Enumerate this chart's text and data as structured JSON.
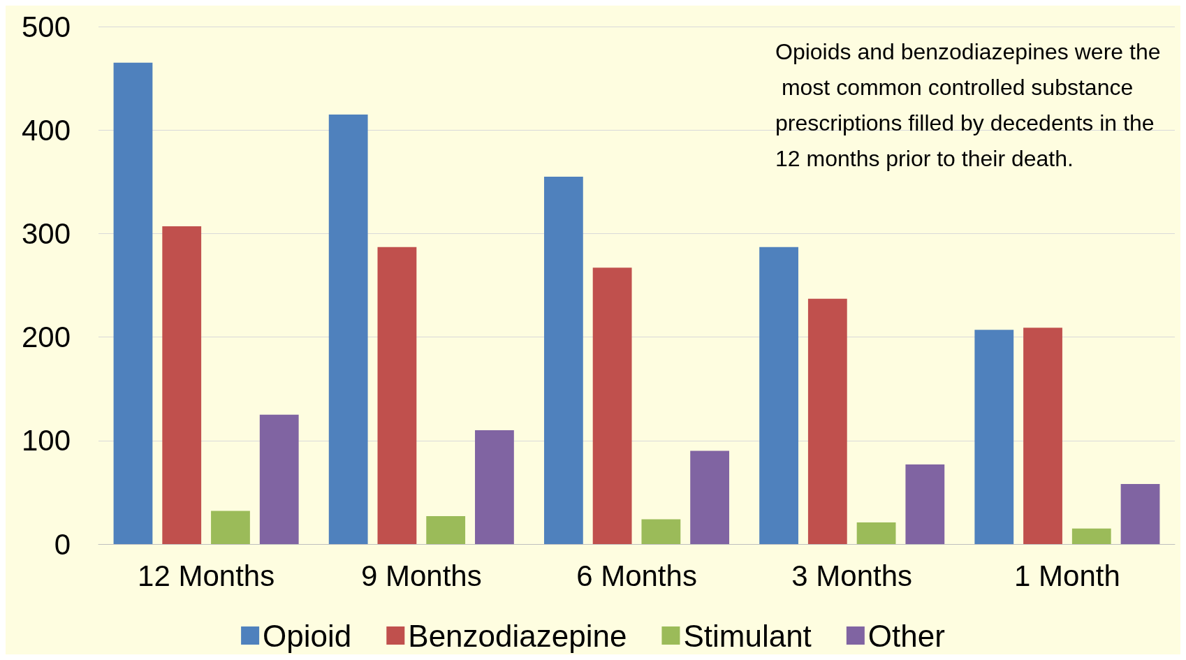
{
  "chart_data": {
    "type": "bar",
    "categories": [
      "12 Months",
      "9 Months",
      "6 Months",
      "3 Months",
      "1 Month"
    ],
    "series": [
      {
        "name": "Opioid",
        "color": "#4f81bd",
        "values": [
          465,
          415,
          355,
          287,
          207
        ]
      },
      {
        "name": "Benzodiazepine",
        "color": "#c0504d",
        "values": [
          307,
          287,
          267,
          237,
          209
        ]
      },
      {
        "name": "Stimulant",
        "color": "#9bbb59",
        "values": [
          32,
          27,
          24,
          21,
          15
        ]
      },
      {
        "name": "Other",
        "color": "#8064a2",
        "values": [
          125,
          110,
          90,
          77,
          58
        ]
      }
    ],
    "ylim": [
      0,
      500
    ],
    "yticks": [
      0,
      100,
      200,
      300,
      400,
      500
    ],
    "grid": "y",
    "legend": "bottom",
    "annotations": [
      "Opioids and benzodiazepines were the most common controlled substance prescriptions filled by decedents in the 12 months prior to their death."
    ]
  }
}
